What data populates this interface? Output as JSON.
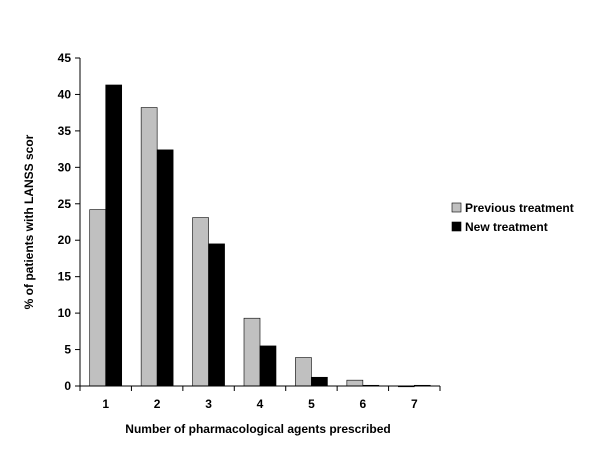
{
  "chart_data": {
    "type": "bar",
    "title": "",
    "xlabel": "Number of pharmacological agents prescribed",
    "ylabel": "% of patients with LANSS scor",
    "categories": [
      "1",
      "2",
      "3",
      "4",
      "5",
      "6",
      "7"
    ],
    "ylim": [
      0,
      45
    ],
    "yticks": [
      0,
      5,
      10,
      15,
      20,
      25,
      30,
      35,
      40,
      45
    ],
    "grid": false,
    "legend_position": "right",
    "series": [
      {
        "name": "Previous treatment",
        "color": "#c0c0c0",
        "values": [
          24.2,
          38.2,
          23.1,
          9.3,
          3.9,
          0.8,
          0.0
        ]
      },
      {
        "name": "New treatment",
        "color": "#000000",
        "values": [
          41.3,
          32.4,
          19.5,
          5.5,
          1.2,
          0.1,
          0.1
        ]
      }
    ]
  }
}
